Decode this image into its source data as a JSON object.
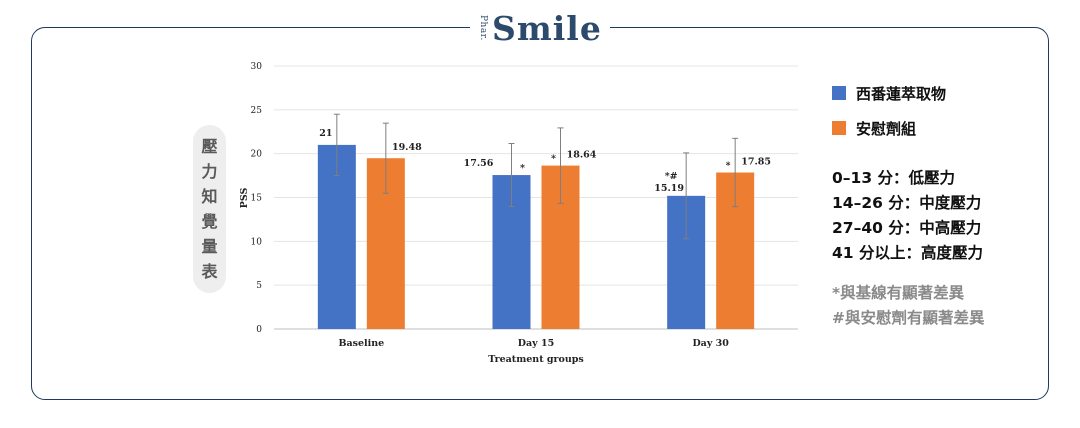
{
  "brand": {
    "prefix": "Phar.",
    "name": "Smile"
  },
  "side_label": [
    "壓",
    "力",
    "知",
    "覺",
    "量",
    "表"
  ],
  "chart_data": {
    "type": "bar",
    "categories": [
      "Baseline",
      "Day 15",
      "Day 30"
    ],
    "series": [
      {
        "name": "西番蓮萃取物",
        "color": "#4472c4",
        "values": [
          21,
          17.56,
          15.19
        ],
        "labels": [
          "21",
          "17.56",
          "15.19"
        ],
        "error": [
          3.5,
          3.6,
          4.9
        ],
        "markers": [
          "",
          "*",
          "*#"
        ]
      },
      {
        "name": "安慰劑組",
        "color": "#ed7d31",
        "values": [
          19.48,
          18.64,
          17.85
        ],
        "labels": [
          "19.48",
          "18.64",
          "17.85"
        ],
        "error": [
          4.0,
          4.3,
          3.9
        ],
        "markers": [
          "",
          "*",
          "*"
        ]
      }
    ],
    "ylabel": "PSS",
    "xlabel": "Treatment groups",
    "ylim": [
      0,
      30
    ],
    "yticks": [
      "0",
      "5",
      "10",
      "15",
      "20",
      "25",
      "30"
    ],
    "grid": true
  },
  "legend": [
    {
      "label": "西番蓮萃取物",
      "color": "#4472c4"
    },
    {
      "label": "安慰劑組",
      "color": "#ed7d31"
    }
  ],
  "scale": [
    "0–13 分：低壓力",
    "14–26 分：中度壓力",
    "27–40 分：中高壓力",
    "41 分以上：高度壓力"
  ],
  "notes": [
    "*與基線有顯著差異",
    "#與安慰劑有顯著差異"
  ]
}
